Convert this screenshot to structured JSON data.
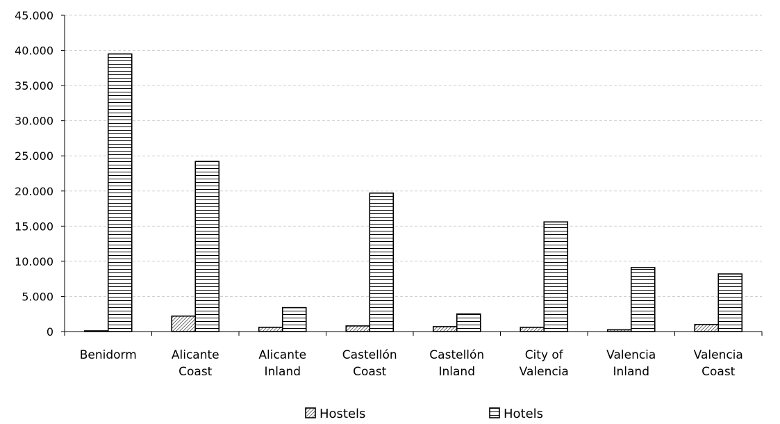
{
  "chart_data": {
    "type": "bar",
    "categories": [
      [
        "Benidorm"
      ],
      [
        "Alicante",
        "Coast"
      ],
      [
        "Alicante",
        "Inland"
      ],
      [
        "Castellón",
        "Coast"
      ],
      [
        "Castellón",
        "Inland"
      ],
      [
        "City of",
        "Valencia"
      ],
      [
        "Valencia",
        "Inland"
      ],
      [
        "Valencia",
        "Coast"
      ]
    ],
    "series": [
      {
        "name": "Hostels",
        "pattern": "diagonal",
        "values": [
          100,
          2200,
          600,
          800,
          700,
          600,
          250,
          1000
        ]
      },
      {
        "name": "Hotels",
        "pattern": "horizontal",
        "values": [
          39500,
          24200,
          3400,
          19700,
          2500,
          15600,
          9100,
          8200
        ]
      }
    ],
    "ylim": [
      0,
      45000
    ],
    "yticks": [
      "0",
      "5.000",
      "10.000",
      "15.000",
      "20.000",
      "25.000",
      "30.000",
      "35.000",
      "40.000",
      "45.000"
    ],
    "ystep": 5000,
    "grid": true,
    "legend_position": "bottom",
    "colors": {
      "bar_fill": "#ffffff",
      "stroke": "#000000",
      "pattern_line": "#000000",
      "grid": "#d0d0d0"
    }
  }
}
